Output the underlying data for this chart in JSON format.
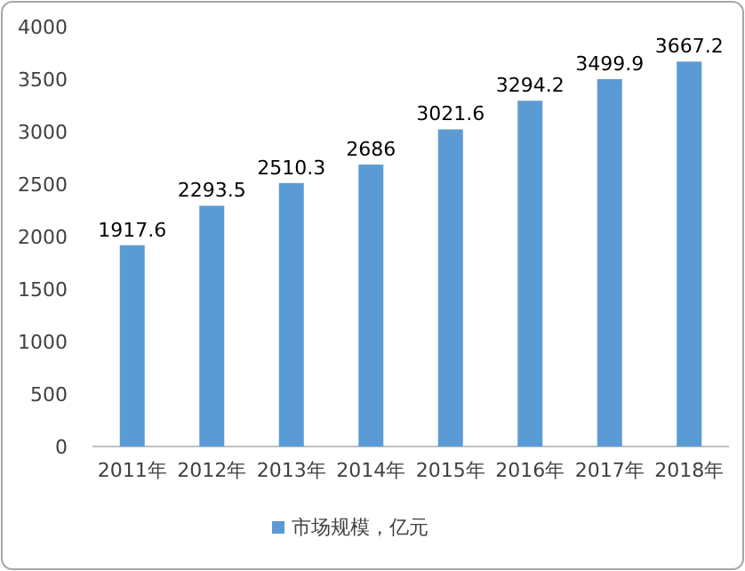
{
  "chart_data": {
    "type": "bar",
    "categories": [
      "2011年",
      "2012年",
      "2013年",
      "2014年",
      "2015年",
      "2016年",
      "2017年",
      "2018年"
    ],
    "series": [
      {
        "name": "市场规模，亿元",
        "color": "#5b9bd5",
        "values": [
          1917.6,
          2293.5,
          2510.3,
          2686,
          3021.6,
          3294.2,
          3499.9,
          3667.2
        ]
      }
    ],
    "ylim": [
      0,
      4000
    ],
    "yticks": [
      0,
      500,
      1000,
      1500,
      2000,
      2500,
      3000,
      3500,
      4000
    ],
    "data_labels": true,
    "grid": false,
    "legend": "bottom"
  }
}
